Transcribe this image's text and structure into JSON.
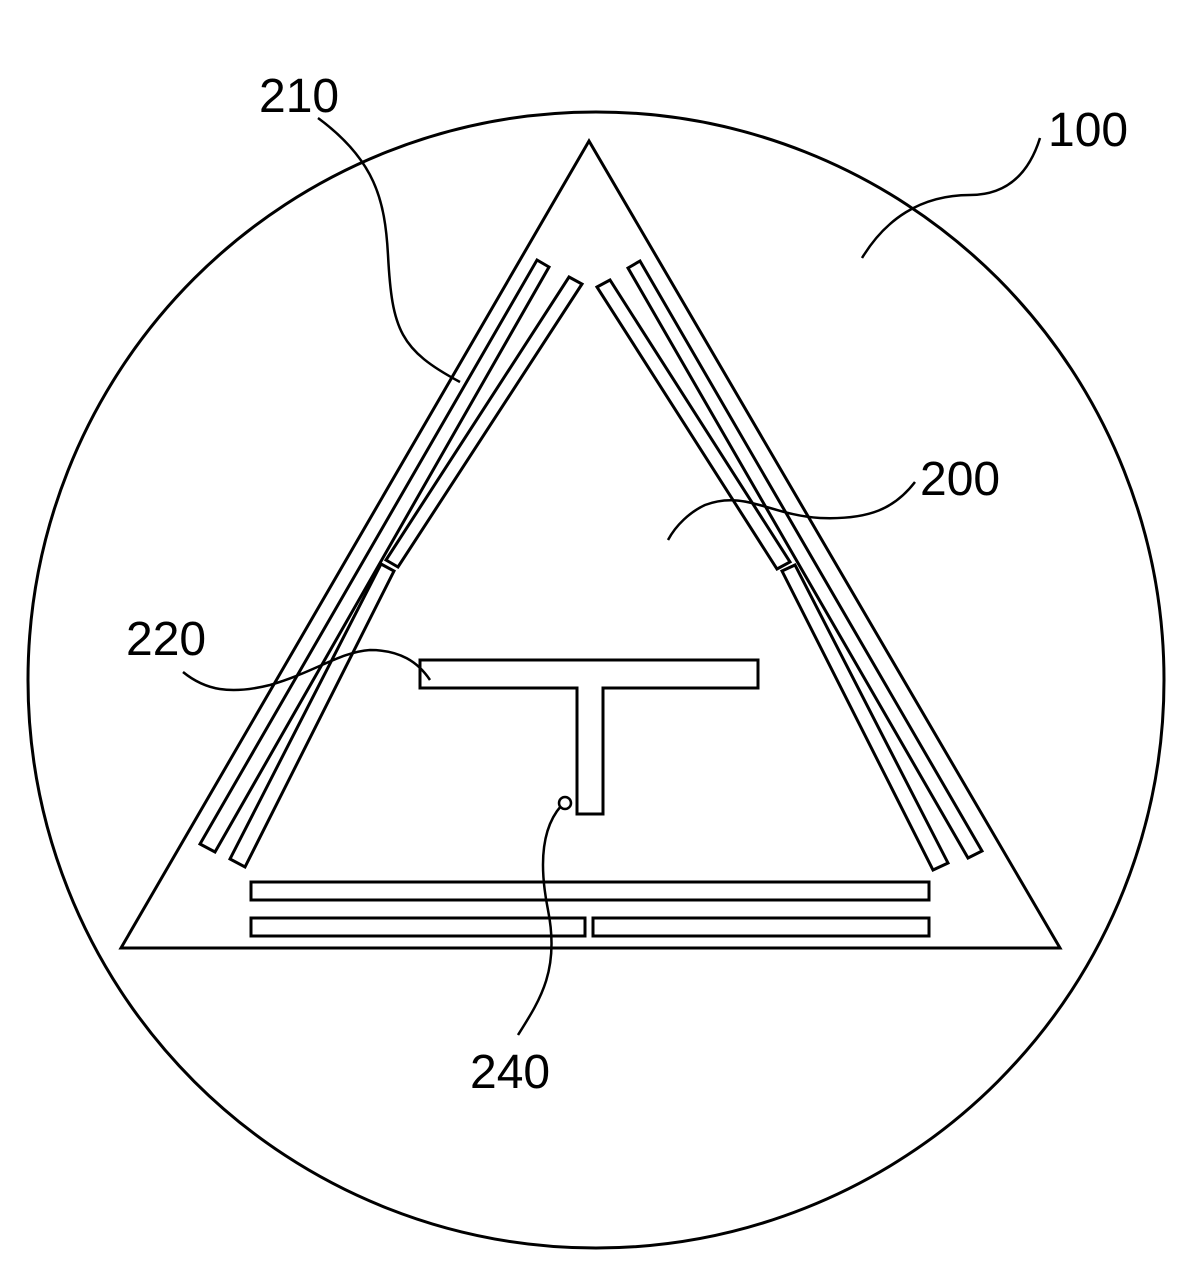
{
  "diagram": {
    "labels": {
      "substrate": "100",
      "triangle_patch": "200",
      "slot_group": "210",
      "t_feed": "220",
      "feed_point": "240"
    },
    "colors": {
      "stroke": "#000000",
      "background": "#ffffff"
    }
  }
}
